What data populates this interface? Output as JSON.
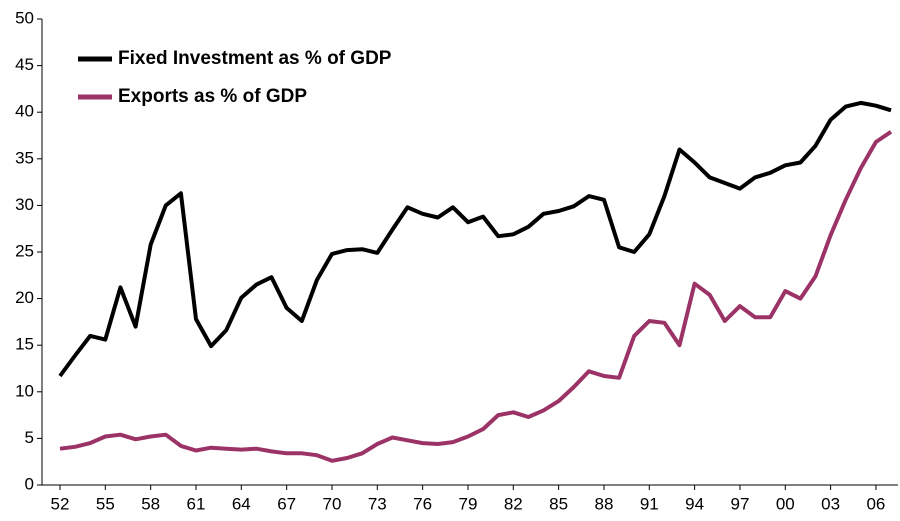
{
  "chart_data": {
    "type": "line",
    "categories": [
      "52",
      null,
      null,
      "55",
      null,
      null,
      "58",
      null,
      null,
      "61",
      null,
      null,
      "64",
      null,
      null,
      "67",
      null,
      null,
      "70",
      null,
      null,
      "73",
      null,
      null,
      "76",
      null,
      null,
      "79",
      null,
      null,
      "82",
      null,
      null,
      "85",
      null,
      null,
      "88",
      null,
      null,
      "91",
      null,
      null,
      "94",
      null,
      null,
      "97",
      null,
      null,
      "00",
      null,
      null,
      "03",
      null,
      null,
      "06",
      null
    ],
    "series": [
      {
        "name": "Fixed Investment as % of GDP",
        "color": "#000000",
        "values": [
          11.7,
          13.9,
          16.0,
          15.6,
          21.2,
          17.0,
          25.8,
          30.0,
          31.3,
          17.8,
          14.9,
          16.6,
          20.1,
          21.5,
          22.3,
          19.0,
          17.6,
          22.0,
          24.8,
          25.2,
          25.3,
          24.9,
          27.4,
          29.8,
          29.1,
          28.7,
          29.8,
          28.2,
          28.8,
          26.7,
          26.9,
          27.7,
          29.1,
          29.4,
          29.9,
          31.0,
          30.6,
          25.5,
          25.0,
          26.9,
          31.0,
          36.0,
          34.6,
          33.0,
          32.4,
          31.8,
          33.0,
          33.5,
          34.3,
          34.6,
          36.4,
          39.2,
          40.6,
          41.0,
          40.7,
          40.2
        ]
      },
      {
        "name": "Exports as % of GDP",
        "color": "#9b3366",
        "values": [
          3.9,
          4.1,
          4.5,
          5.2,
          5.4,
          4.9,
          5.2,
          5.4,
          4.2,
          3.7,
          4.0,
          3.9,
          3.8,
          3.9,
          3.6,
          3.4,
          3.4,
          3.2,
          2.6,
          2.9,
          3.4,
          4.4,
          5.1,
          4.8,
          4.5,
          4.4,
          4.6,
          5.2,
          6.0,
          7.5,
          7.8,
          7.3,
          8.0,
          9.0,
          10.5,
          12.2,
          11.7,
          11.5,
          16.0,
          17.6,
          17.4,
          15.0,
          21.6,
          20.4,
          17.6,
          19.2,
          18.0,
          18.0,
          20.8,
          20.0,
          22.4,
          26.8,
          30.6,
          34.0,
          36.8,
          37.9
        ]
      }
    ],
    "ylim": [
      0,
      50
    ],
    "yticks": [
      0,
      5,
      10,
      15,
      20,
      25,
      30,
      35,
      40,
      45,
      50
    ],
    "grid": false,
    "legend": "upper left"
  }
}
